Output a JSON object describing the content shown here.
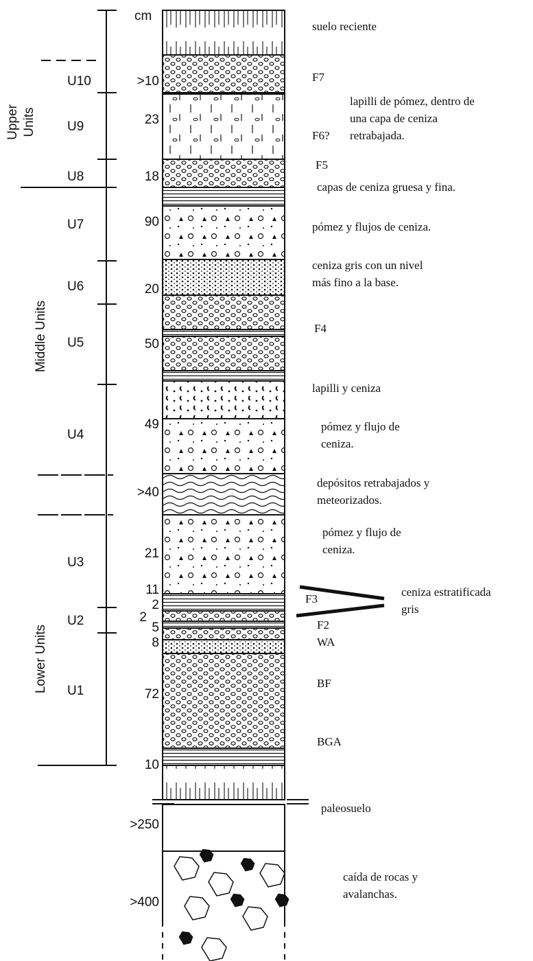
{
  "groups": [
    [
      "Upper",
      "Units"
    ],
    [
      "Middle Units"
    ],
    [
      "Lower Units"
    ]
  ],
  "units": [
    "U10",
    "U9",
    "U8",
    "U7",
    "U6",
    "U5",
    "U4",
    "U3",
    "U2",
    "U1"
  ],
  "thickness_unit": "cm",
  "thicknesses": [
    ">10",
    "23",
    "18",
    "90",
    "20",
    "50",
    "49",
    ">40",
    "21",
    "11",
    "2",
    "2",
    "5",
    "8",
    "72",
    "10",
    ">250",
    ">400"
  ],
  "labels": [
    [
      "suelo reciente"
    ],
    [
      "F7"
    ],
    [
      "lapilli de pómez, dentro de",
      "una capa de ceniza",
      "retrabajada."
    ],
    [
      "F6?"
    ],
    [
      "F5"
    ],
    [
      "capas de ceniza gruesa y fina."
    ],
    [
      "pómez y flujos de ceniza."
    ],
    [
      "ceniza gris con un nivel",
      "más fino a la base."
    ],
    [
      "F4"
    ],
    [
      "lapilli y ceniza"
    ],
    [
      "pómez y flujo de",
      "ceniza."
    ],
    [
      "depósitos retrabajados y",
      "meteorizados."
    ],
    [
      "pómez y flujo de",
      "ceniza."
    ],
    [
      "ceniza estratificada",
      "gris"
    ],
    [
      "F3"
    ],
    [
      "F2"
    ],
    [
      "WA"
    ],
    [
      "BF"
    ],
    [
      "BGA"
    ],
    [
      "paleosuelo"
    ],
    [
      "caída de rocas  y",
      "avalanchas."
    ]
  ]
}
